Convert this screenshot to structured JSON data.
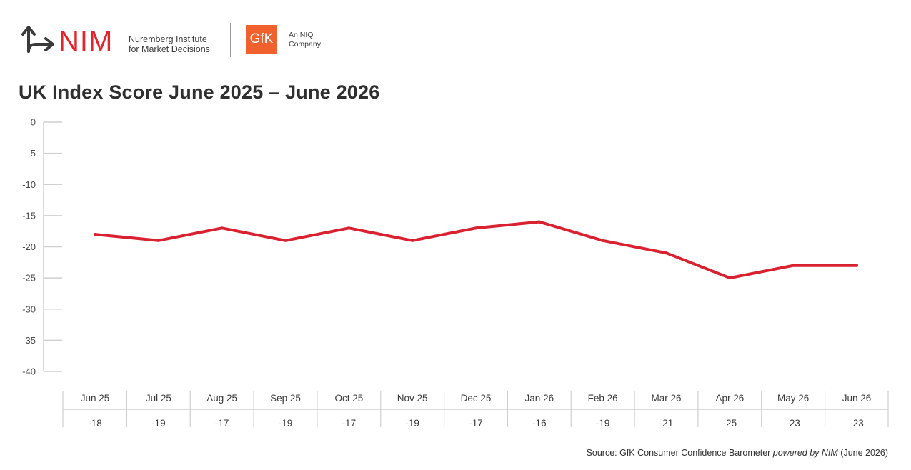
{
  "header": {
    "nim_logo_text": "NIM",
    "nim_subtitle_line1": "Nuremberg Institute",
    "nim_subtitle_line2": "for Market Decisions",
    "gfk_logo_text": "GfK",
    "gfk_subtitle_line1": "An NIQ",
    "gfk_subtitle_line2": "Company",
    "nim_color": "#e4232d",
    "gfk_color": "#f0612d"
  },
  "chart_data": {
    "type": "line",
    "title": "UK Index Score June 2025 – June 2026",
    "xlabel": "",
    "ylabel": "",
    "categories": [
      "Jun 25",
      "Jul 25",
      "Aug 25",
      "Sep 25",
      "Oct 25",
      "Nov 25",
      "Dec 25",
      "Jan 26",
      "Feb 26",
      "Mar 26",
      "Apr 26",
      "May 26",
      "Jun 26"
    ],
    "series": [
      {
        "values": [
          -18,
          -19,
          -17,
          -19,
          -17,
          -19,
          -17,
          -16,
          -19,
          -21,
          -25,
          -23,
          -23
        ],
        "color": "#d92130"
      }
    ],
    "value_labels": [
      "-18",
      "-19",
      "-17",
      "-19",
      "-17",
      "-19",
      "-17",
      "-16",
      "-19",
      "-21",
      "-25",
      "-23",
      "-23"
    ],
    "ylim": [
      -40,
      0
    ],
    "yticks": [
      0,
      -5,
      -10,
      -15,
      -20,
      -25,
      -30,
      -35,
      -40
    ],
    "grid": false,
    "legend": "none",
    "table_below": true
  },
  "footer": {
    "source_prefix": "Source: GfK Consumer Confidence Barometer ",
    "source_italic": "powered by NIM",
    "source_suffix": " (June 2026)"
  }
}
